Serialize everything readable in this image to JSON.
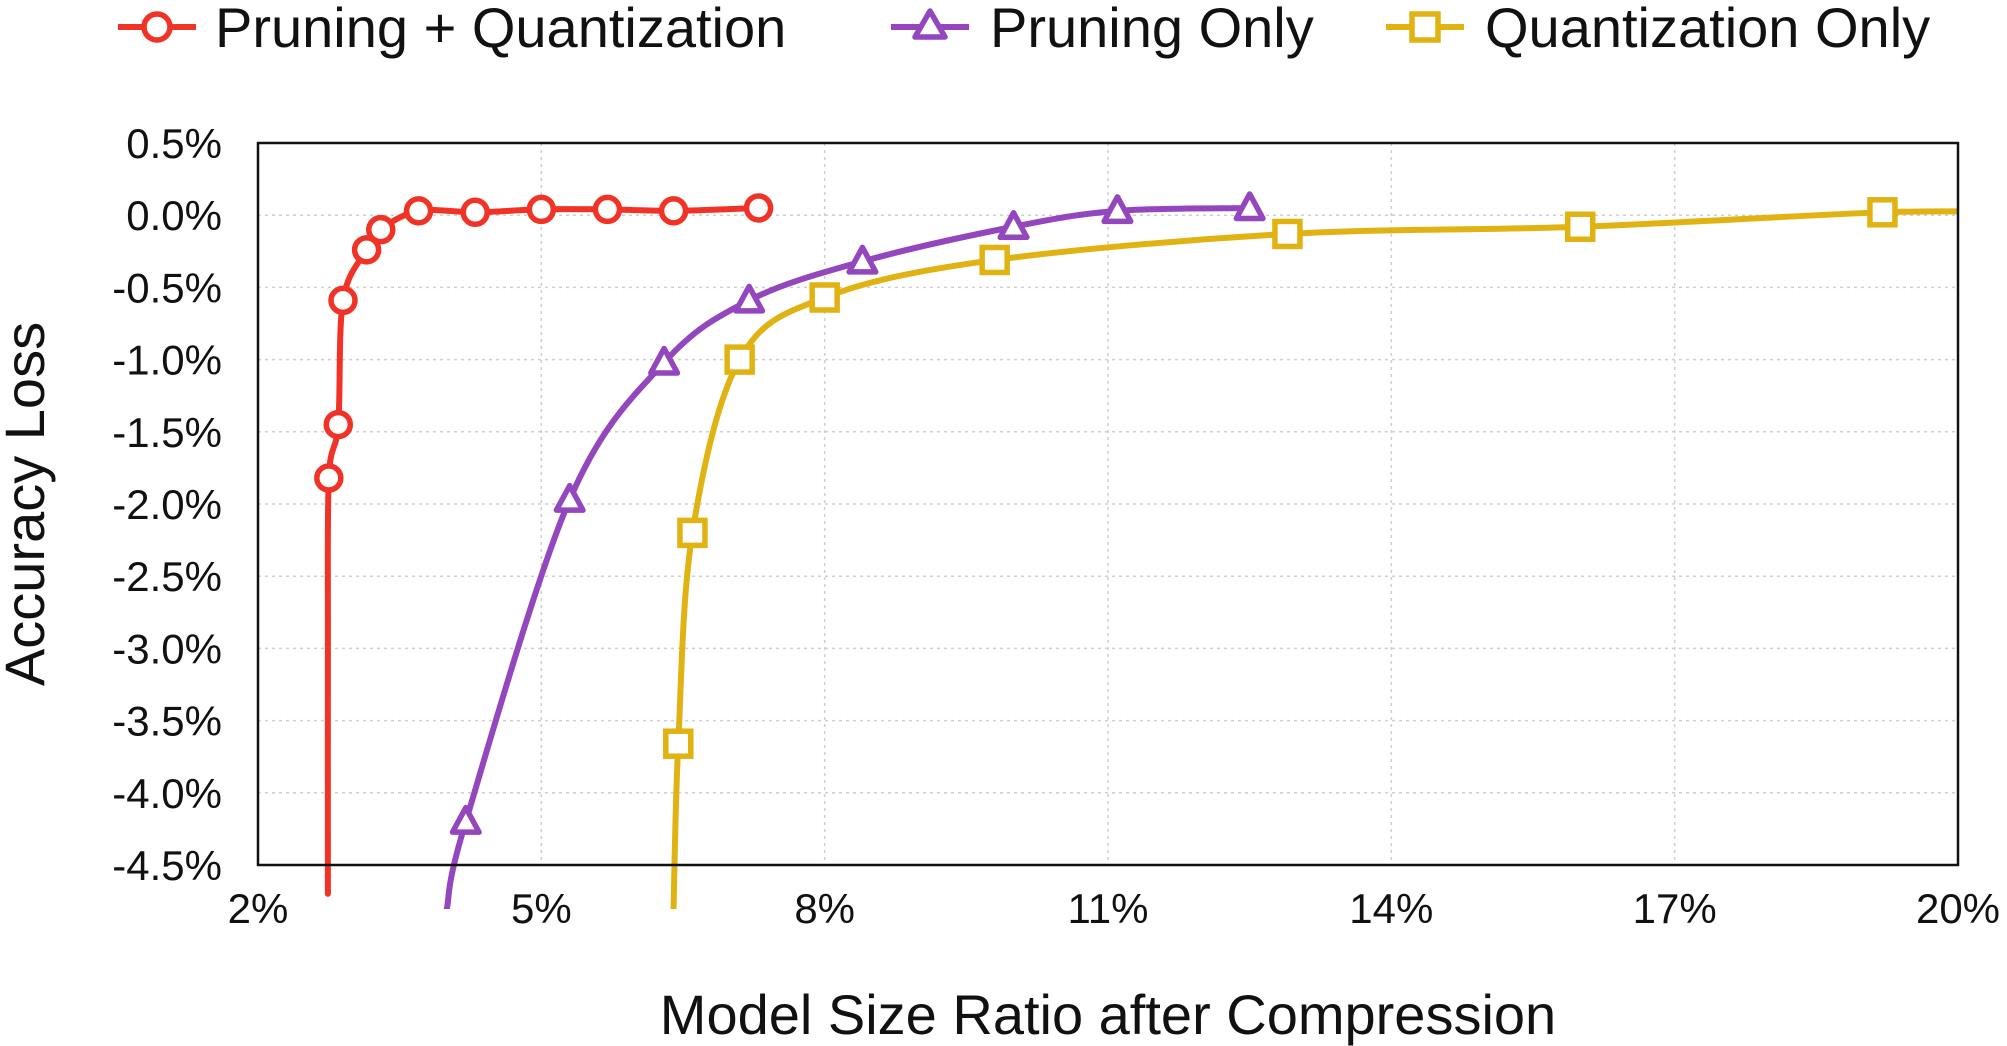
{
  "chart_data": {
    "type": "line",
    "title": "",
    "xlabel": "Model Size Ratio after Compression",
    "ylabel": "Accuracy Loss",
    "xlim": [
      2,
      20
    ],
    "ylim": [
      -4.5,
      0.5
    ],
    "x_ticks": [
      "2%",
      "5%",
      "8%",
      "11%",
      "14%",
      "17%",
      "20%"
    ],
    "x_tick_values": [
      2,
      5,
      8,
      11,
      14,
      17,
      20
    ],
    "y_ticks": [
      "0.5%",
      "0.0%",
      "-0.5%",
      "-1.0%",
      "-1.5%",
      "-2.0%",
      "-2.5%",
      "-3.0%",
      "-3.5%",
      "-4.0%",
      "-4.5%"
    ],
    "y_tick_values": [
      0.5,
      0.0,
      -0.5,
      -1.0,
      -1.5,
      -2.0,
      -2.5,
      -3.0,
      -3.5,
      -4.0,
      -4.5
    ],
    "grid": true,
    "legend_position": "top",
    "series": [
      {
        "name": "Pruning + Quantization",
        "color": "#f03326",
        "marker": "circle",
        "points": [
          [
            2.75,
            -1.82
          ],
          [
            2.85,
            -1.45
          ],
          [
            2.9,
            -0.59
          ],
          [
            3.15,
            -0.24
          ],
          [
            3.3,
            -0.1
          ],
          [
            3.7,
            0.03
          ],
          [
            4.3,
            0.02
          ],
          [
            5.0,
            0.04
          ],
          [
            5.7,
            0.04
          ],
          [
            6.4,
            0.03
          ],
          [
            7.3,
            0.05
          ]
        ],
        "curve_extension": [
          [
            2.74,
            -4.7
          ],
          [
            2.74,
            -3.0
          ]
        ]
      },
      {
        "name": "Pruning Only",
        "color": "#9346bd",
        "marker": "triangle",
        "points": [
          [
            4.2,
            -4.2
          ],
          [
            5.3,
            -1.97
          ],
          [
            6.3,
            -1.02
          ],
          [
            7.2,
            -0.59
          ],
          [
            8.4,
            -0.32
          ],
          [
            10.0,
            -0.08
          ],
          [
            11.1,
            0.03
          ],
          [
            12.5,
            0.05
          ]
        ],
        "curve_extension": [
          [
            4.0,
            -4.8
          ]
        ]
      },
      {
        "name": "Quantization Only",
        "color": "#e0b313",
        "marker": "square",
        "points": [
          [
            6.45,
            -3.66
          ],
          [
            6.6,
            -2.2
          ],
          [
            7.1,
            -1.0
          ],
          [
            8.0,
            -0.57
          ],
          [
            9.8,
            -0.31
          ],
          [
            12.9,
            -0.13
          ],
          [
            16.0,
            -0.08
          ],
          [
            19.2,
            0.02
          ]
        ],
        "curve_extension": [
          [
            6.4,
            -4.8
          ],
          [
            20.5,
            0.02
          ]
        ]
      }
    ]
  }
}
